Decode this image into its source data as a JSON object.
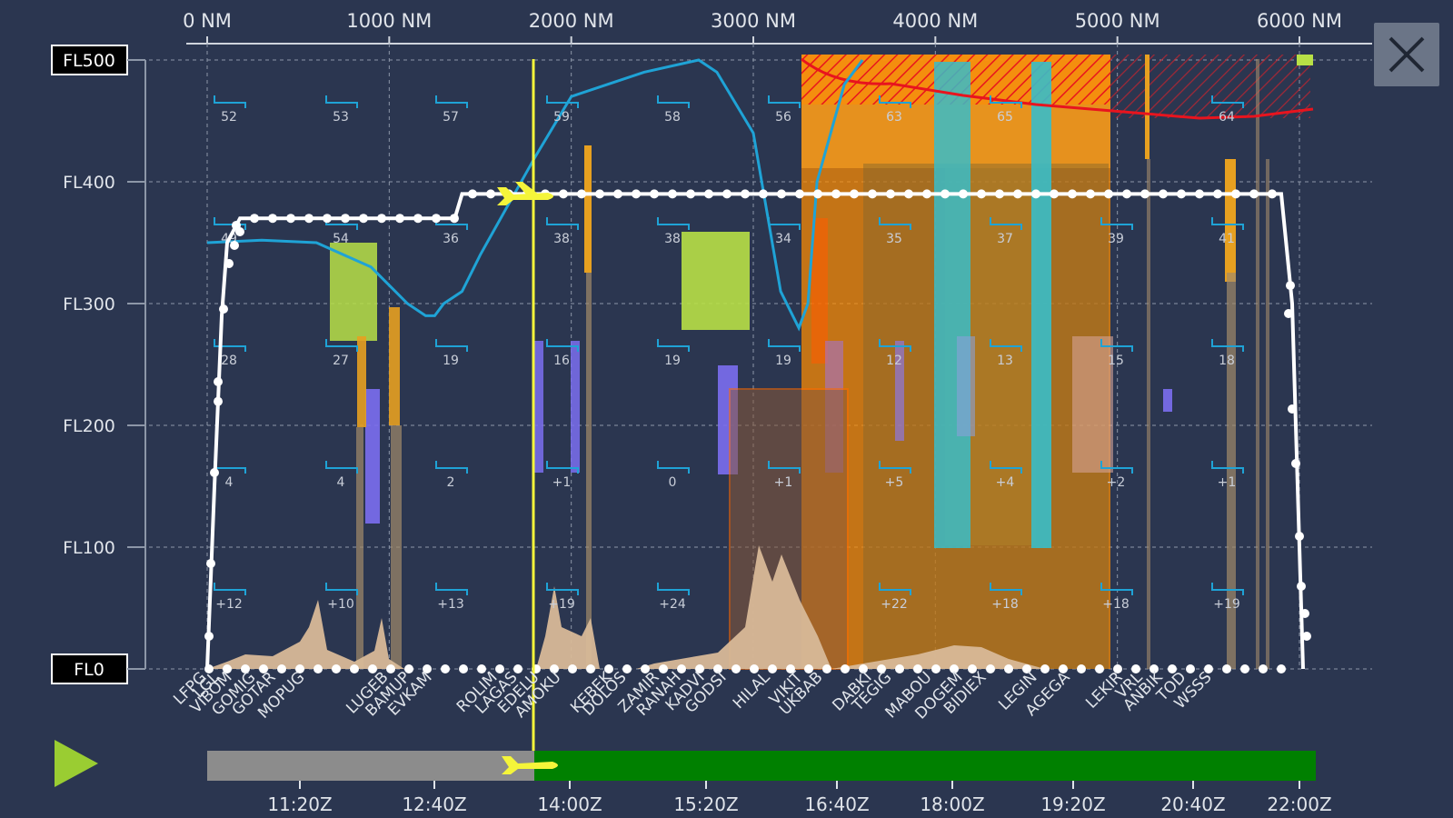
{
  "close_button": {
    "icon": "close-icon"
  },
  "play_button": {
    "icon": "play-icon",
    "color": "#9acd32"
  },
  "flight_levels": [
    "FL500",
    "FL400",
    "FL300",
    "FL200",
    "FL100",
    "FL0"
  ],
  "distance_labels": [
    "0 NM",
    "1000 NM",
    "2000 NM",
    "3000 NM",
    "4000 NM",
    "5000 NM",
    "6000 NM"
  ],
  "waypoints": [
    "LFPG",
    "LGL",
    "VIBOM",
    "GOMIG",
    "GOTAR",
    "MOPUG",
    "LUGEB",
    "BAMUP",
    "EVKAM",
    "ROLIM",
    "LAGAS",
    "EDELU",
    "AMOKU",
    "KEBEK",
    "DOLOS",
    "ZAMIR",
    "RANAH",
    "KADVI",
    "GODSI",
    "HILAL",
    "VIKIT",
    "UKBAB",
    "DABKI",
    "TEGIG",
    "MABOU",
    "DOGEM",
    "BIDIEX",
    "LEGIN",
    "AGEGA",
    "LEKIR",
    "VRL",
    "ANBIK",
    "TOD",
    "WSSS"
  ],
  "time_labels": [
    "11:20Z",
    "12:40Z",
    "14:00Z",
    "15:20Z",
    "16:40Z",
    "18:00Z",
    "19:20Z",
    "20:40Z",
    "22:00Z"
  ],
  "wind_labels": {
    "FL450": [
      "52",
      "53",
      "57",
      "59",
      "58",
      "56",
      "63",
      "65",
      "",
      "",
      "64"
    ],
    "FL350": [
      "49",
      "54",
      "36",
      "38",
      "38",
      "34",
      "35",
      "37",
      "39",
      "41"
    ],
    "FL250": [
      "28",
      "27",
      "19",
      "16",
      "19",
      "19",
      "12",
      "13",
      "15",
      "18"
    ],
    "FL150": [
      "4",
      "4",
      "2",
      "+1",
      "0",
      "+1",
      "+5",
      "+4",
      "+2",
      "+1"
    ],
    "FL050": [
      "+12",
      "+10",
      "+13",
      "+19",
      "+24",
      "",
      "+22",
      "+18",
      "+18",
      "+19"
    ]
  },
  "colors": {
    "background": "#2b3650",
    "route": "#ffffff",
    "tropopause": "#1fa3d6",
    "turbulence_high": "#ff8c00",
    "icing": "#8a7aff",
    "cumulonimbus": "#b8e046",
    "terrain": "#d8b998",
    "aircraft": "#f5f53a",
    "flown": "#8c8c8c",
    "remaining": "#008000",
    "ceiling": "#e8141e"
  },
  "chart_data": {
    "type": "line",
    "x_unit": "NM",
    "x_range": [
      0,
      6000
    ],
    "y_unit": "FL",
    "y_range": [
      0,
      500
    ],
    "series": [
      {
        "x": [
          0,
          40,
          80,
          110,
          180,
          240,
          500,
          1200,
          1360,
          1400,
          2000,
          3000,
          4000,
          5000,
          5900,
          5960,
          6000,
          6020
        ],
        "y": [
          0,
          150,
          290,
          350,
          370,
          370,
          370,
          370,
          370,
          390,
          390,
          390,
          390,
          390,
          390,
          300,
          100,
          0
        ]
      },
      {
        "x": [
          0,
          300,
          600,
          900,
          1100,
          1200,
          1250,
          1300,
          1400,
          1500,
          1650,
          1800,
          2000,
          2200,
          2400,
          2700,
          2800,
          3000,
          3150,
          3250,
          3300,
          3350,
          3500,
          3600
        ],
        "y": [
          350,
          352,
          350,
          330,
          300,
          290,
          290,
          300,
          310,
          340,
          380,
          420,
          470,
          480,
          490,
          500,
          490,
          440,
          310,
          280,
          300,
          400,
          480,
          500
        ]
      },
      {
        "x": [
          3250,
          3400,
          3600,
          3800,
          4000,
          4200,
          4400,
          4600,
          4800,
          5000,
          5200,
          5400,
          5600,
          5800,
          6000
        ],
        "y": [
          500,
          490,
          485,
          480,
          478,
          475,
          472,
          470,
          468,
          467,
          466,
          465,
          465,
          467,
          470
        ]
      }
    ]
  }
}
